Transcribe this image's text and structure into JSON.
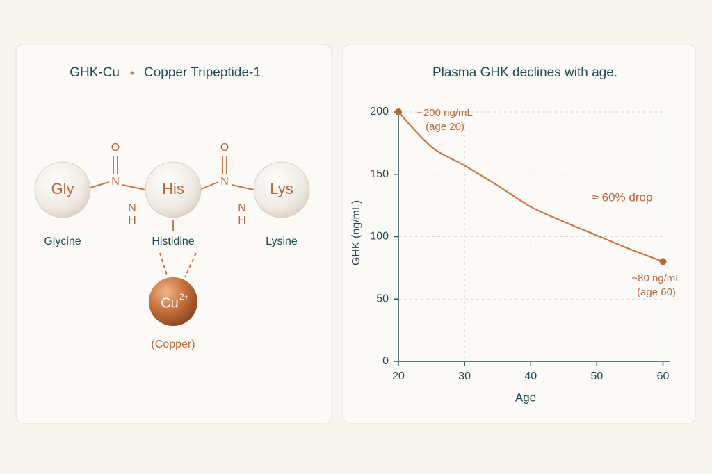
{
  "diagram": {
    "title": "GHK-Cu",
    "subtitle": "Copper Tripeptide-1",
    "nodes": [
      {
        "label": "Gly",
        "name": "Glycine"
      },
      {
        "label": "His",
        "name": "Histidine"
      },
      {
        "label": "Lys",
        "name": "Lysine"
      }
    ],
    "linkers": [
      {
        "o": "O",
        "n": "N",
        "nh_n": "N",
        "nh_h": "H"
      },
      {
        "o": "O",
        "n": "N",
        "nh_n": "N",
        "nh_h": "H"
      }
    ],
    "metal": {
      "symbol": "Cu",
      "charge": "2+",
      "name": "(Copper)"
    }
  },
  "chart_data": {
    "type": "line",
    "title": "Plasma GHK declines with age.",
    "x_label": "Age",
    "y_label": "GHK (ng/mL)",
    "x": [
      20,
      25,
      30,
      35,
      40,
      45,
      50,
      55,
      60
    ],
    "values": [
      200,
      172,
      157,
      141,
      124,
      112,
      101,
      90,
      80
    ],
    "color": "#c07a4c",
    "xlim": [
      20,
      61
    ],
    "ylim": [
      0,
      200
    ],
    "xticks": [
      20,
      30,
      40,
      50,
      60
    ],
    "yticks": [
      0,
      50,
      100,
      150,
      200
    ],
    "grid": true,
    "annotations": [
      {
        "lines": [
          "~200 ng/mL",
          "(age 20)"
        ]
      },
      {
        "lines": [
          "≈ 60% drop"
        ]
      },
      {
        "lines": [
          "~80 ng/mL",
          "(age 60)"
        ]
      }
    ]
  }
}
